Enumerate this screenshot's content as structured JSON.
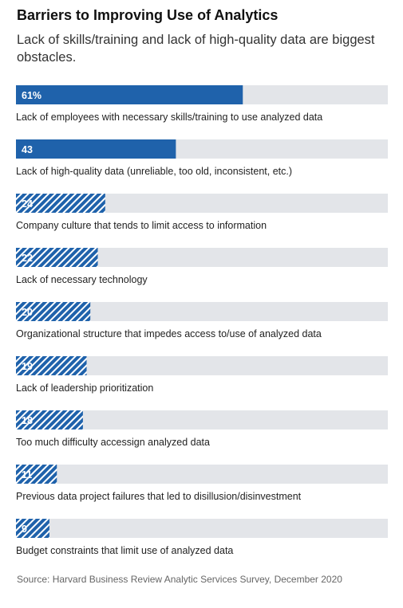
{
  "chart_data": {
    "type": "bar",
    "orientation": "horizontal",
    "title": "Barriers to Improving Use of Analytics",
    "subtitle": "Lack of skills/training and lack of high-quality data are biggest obstacles.",
    "categories": [
      "Lack of employees with necessary skills/training to use analyzed data",
      "Lack of high-quality data (unreliable, too old, inconsistent, etc.)",
      "Company culture that tends to limit access to information",
      "Lack of necessary technology",
      "Organizational structure that impedes access to/use of analyzed data",
      "Lack of leadership prioritization",
      "Too much difficulty accessign analyzed data",
      "Previous data project failures that led to disillusion/disinvestment",
      "Budget constraints that limit use of analyzed data"
    ],
    "values": [
      61,
      43,
      24,
      22,
      20,
      19,
      18,
      11,
      9
    ],
    "value_labels": [
      "61%",
      "43",
      "24",
      "22",
      "20",
      "19",
      "18",
      "11",
      "9"
    ],
    "xlim": [
      0,
      100
    ],
    "source": "Source: Harvard Business Review Analytic Services Survey, December 2020",
    "colors": {
      "bar_solid": "#1f62ab",
      "bar_hatch_stripe": "#1f62ab",
      "bar_hatch_background": "#ffffff",
      "track": "#e3e5e9",
      "value_label": "#ffffff"
    }
  }
}
